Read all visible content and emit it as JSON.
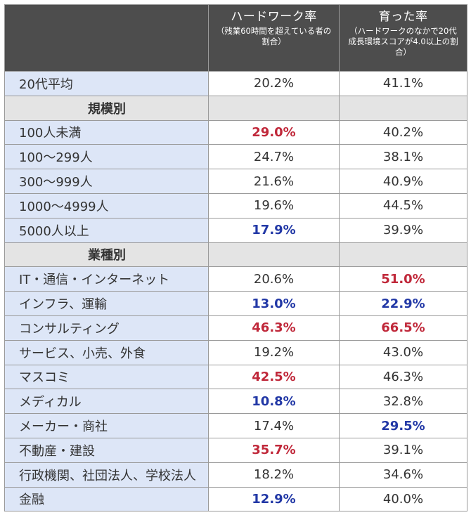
{
  "header": {
    "col2_title": "ハードワーク率",
    "col2_sub": "（残業60時間を超えている者の割合）",
    "col3_title": "育った率",
    "col3_sub": "（ハードワークのなかで20代成長環境スコアが4.0以上の割合）"
  },
  "rows": [
    {
      "label": "20代平均",
      "v1": "20.2%",
      "v2": "41.1%",
      "c1": "",
      "c2": ""
    },
    {
      "section": true,
      "label": "規模別"
    },
    {
      "label": "100人未満",
      "v1": "29.0%",
      "v2": "40.2%",
      "c1": "red",
      "c2": ""
    },
    {
      "label": "100〜299人",
      "v1": "24.7%",
      "v2": "38.1%",
      "c1": "",
      "c2": ""
    },
    {
      "label": "300〜999人",
      "v1": "21.6%",
      "v2": "40.9%",
      "c1": "",
      "c2": ""
    },
    {
      "label": "1000〜4999人",
      "v1": "19.6%",
      "v2": "44.5%",
      "c1": "",
      "c2": ""
    },
    {
      "label": "5000人以上",
      "v1": "17.9%",
      "v2": "39.9%",
      "c1": "blue",
      "c2": ""
    },
    {
      "section": true,
      "label": "業種別"
    },
    {
      "label": "IT・通信・インターネット",
      "v1": "20.6%",
      "v2": "51.0%",
      "c1": "",
      "c2": "red"
    },
    {
      "label": "インフラ、運輸",
      "v1": "13.0%",
      "v2": "22.9%",
      "c1": "blue",
      "c2": "blue"
    },
    {
      "label": "コンサルティング",
      "v1": "46.3%",
      "v2": "66.5%",
      "c1": "red",
      "c2": "red"
    },
    {
      "label": "サービス、小売、外食",
      "v1": "19.2%",
      "v2": "43.0%",
      "c1": "",
      "c2": ""
    },
    {
      "label": "マスコミ",
      "v1": "42.5%",
      "v2": "46.3%",
      "c1": "red",
      "c2": ""
    },
    {
      "label": "メディカル",
      "v1": "10.8%",
      "v2": "32.8%",
      "c1": "blue",
      "c2": ""
    },
    {
      "label": "メーカー・商社",
      "v1": "17.4%",
      "v2": "29.5%",
      "c1": "",
      "c2": "blue"
    },
    {
      "label": "不動産・建設",
      "v1": "35.7%",
      "v2": "39.1%",
      "c1": "red",
      "c2": ""
    },
    {
      "label": "行政機関、社団法人、学校法人",
      "v1": "18.2%",
      "v2": "34.6%",
      "c1": "",
      "c2": ""
    },
    {
      "label": "金融",
      "v1": "12.9%",
      "v2": "40.0%",
      "c1": "blue",
      "c2": ""
    }
  ],
  "colors": {
    "header_bg": "#4d4d4d",
    "label_bg": "#dde6f7",
    "section_bg": "#e4e4e4",
    "highlight_red": "#c0283a",
    "highlight_blue": "#2238a6"
  }
}
